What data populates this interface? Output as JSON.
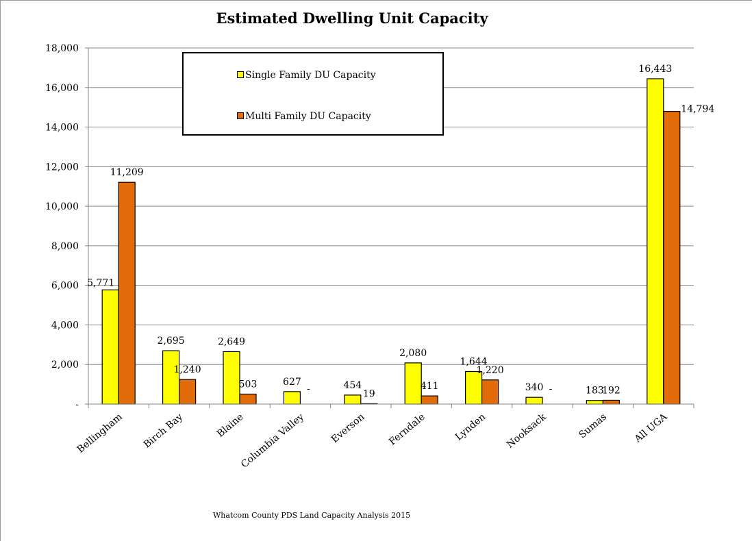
{
  "chart_data": {
    "type": "bar",
    "title": "Estimated Dwelling Unit Capacity",
    "categories": [
      "Bellingham",
      "Birch Bay",
      "Blaine",
      "Columbia Valley",
      "Everson",
      "Ferndale",
      "Lynden",
      "Nooksack",
      "Sumas",
      "All UGA"
    ],
    "series": [
      {
        "name": "Single Family DU Capacity",
        "color": "#ffff00",
        "values": [
          5771,
          2695,
          2649,
          627,
          454,
          2080,
          1644,
          340,
          183,
          16443
        ],
        "labels": [
          "5,771",
          "2,695",
          "2,649",
          "627",
          "454",
          "2,080",
          "1,644",
          "340",
          "183",
          "16,443"
        ]
      },
      {
        "name": "Multi Family DU Capacity",
        "color": "#e36c0a",
        "values": [
          11209,
          1240,
          503,
          0,
          19,
          411,
          1220,
          0,
          192,
          14794
        ],
        "labels": [
          "11,209",
          "1,240",
          "503",
          "-",
          "19",
          "411",
          "1,220",
          "-",
          "192",
          "14,794"
        ]
      }
    ],
    "ylim": [
      0,
      18000
    ],
    "yticks": [
      0,
      2000,
      4000,
      6000,
      8000,
      10000,
      12000,
      14000,
      16000,
      18000
    ],
    "ytick_labels": [
      "-",
      "2,000",
      "4,000",
      "6,000",
      "8,000",
      "10,000",
      "12,000",
      "14,000",
      "16,000",
      "18,000"
    ],
    "xlabel": "",
    "ylabel": "",
    "grid": true,
    "legend_position": "top-center"
  },
  "source_note": "Whatcom County PDS Land Capacity Analysis 2015"
}
